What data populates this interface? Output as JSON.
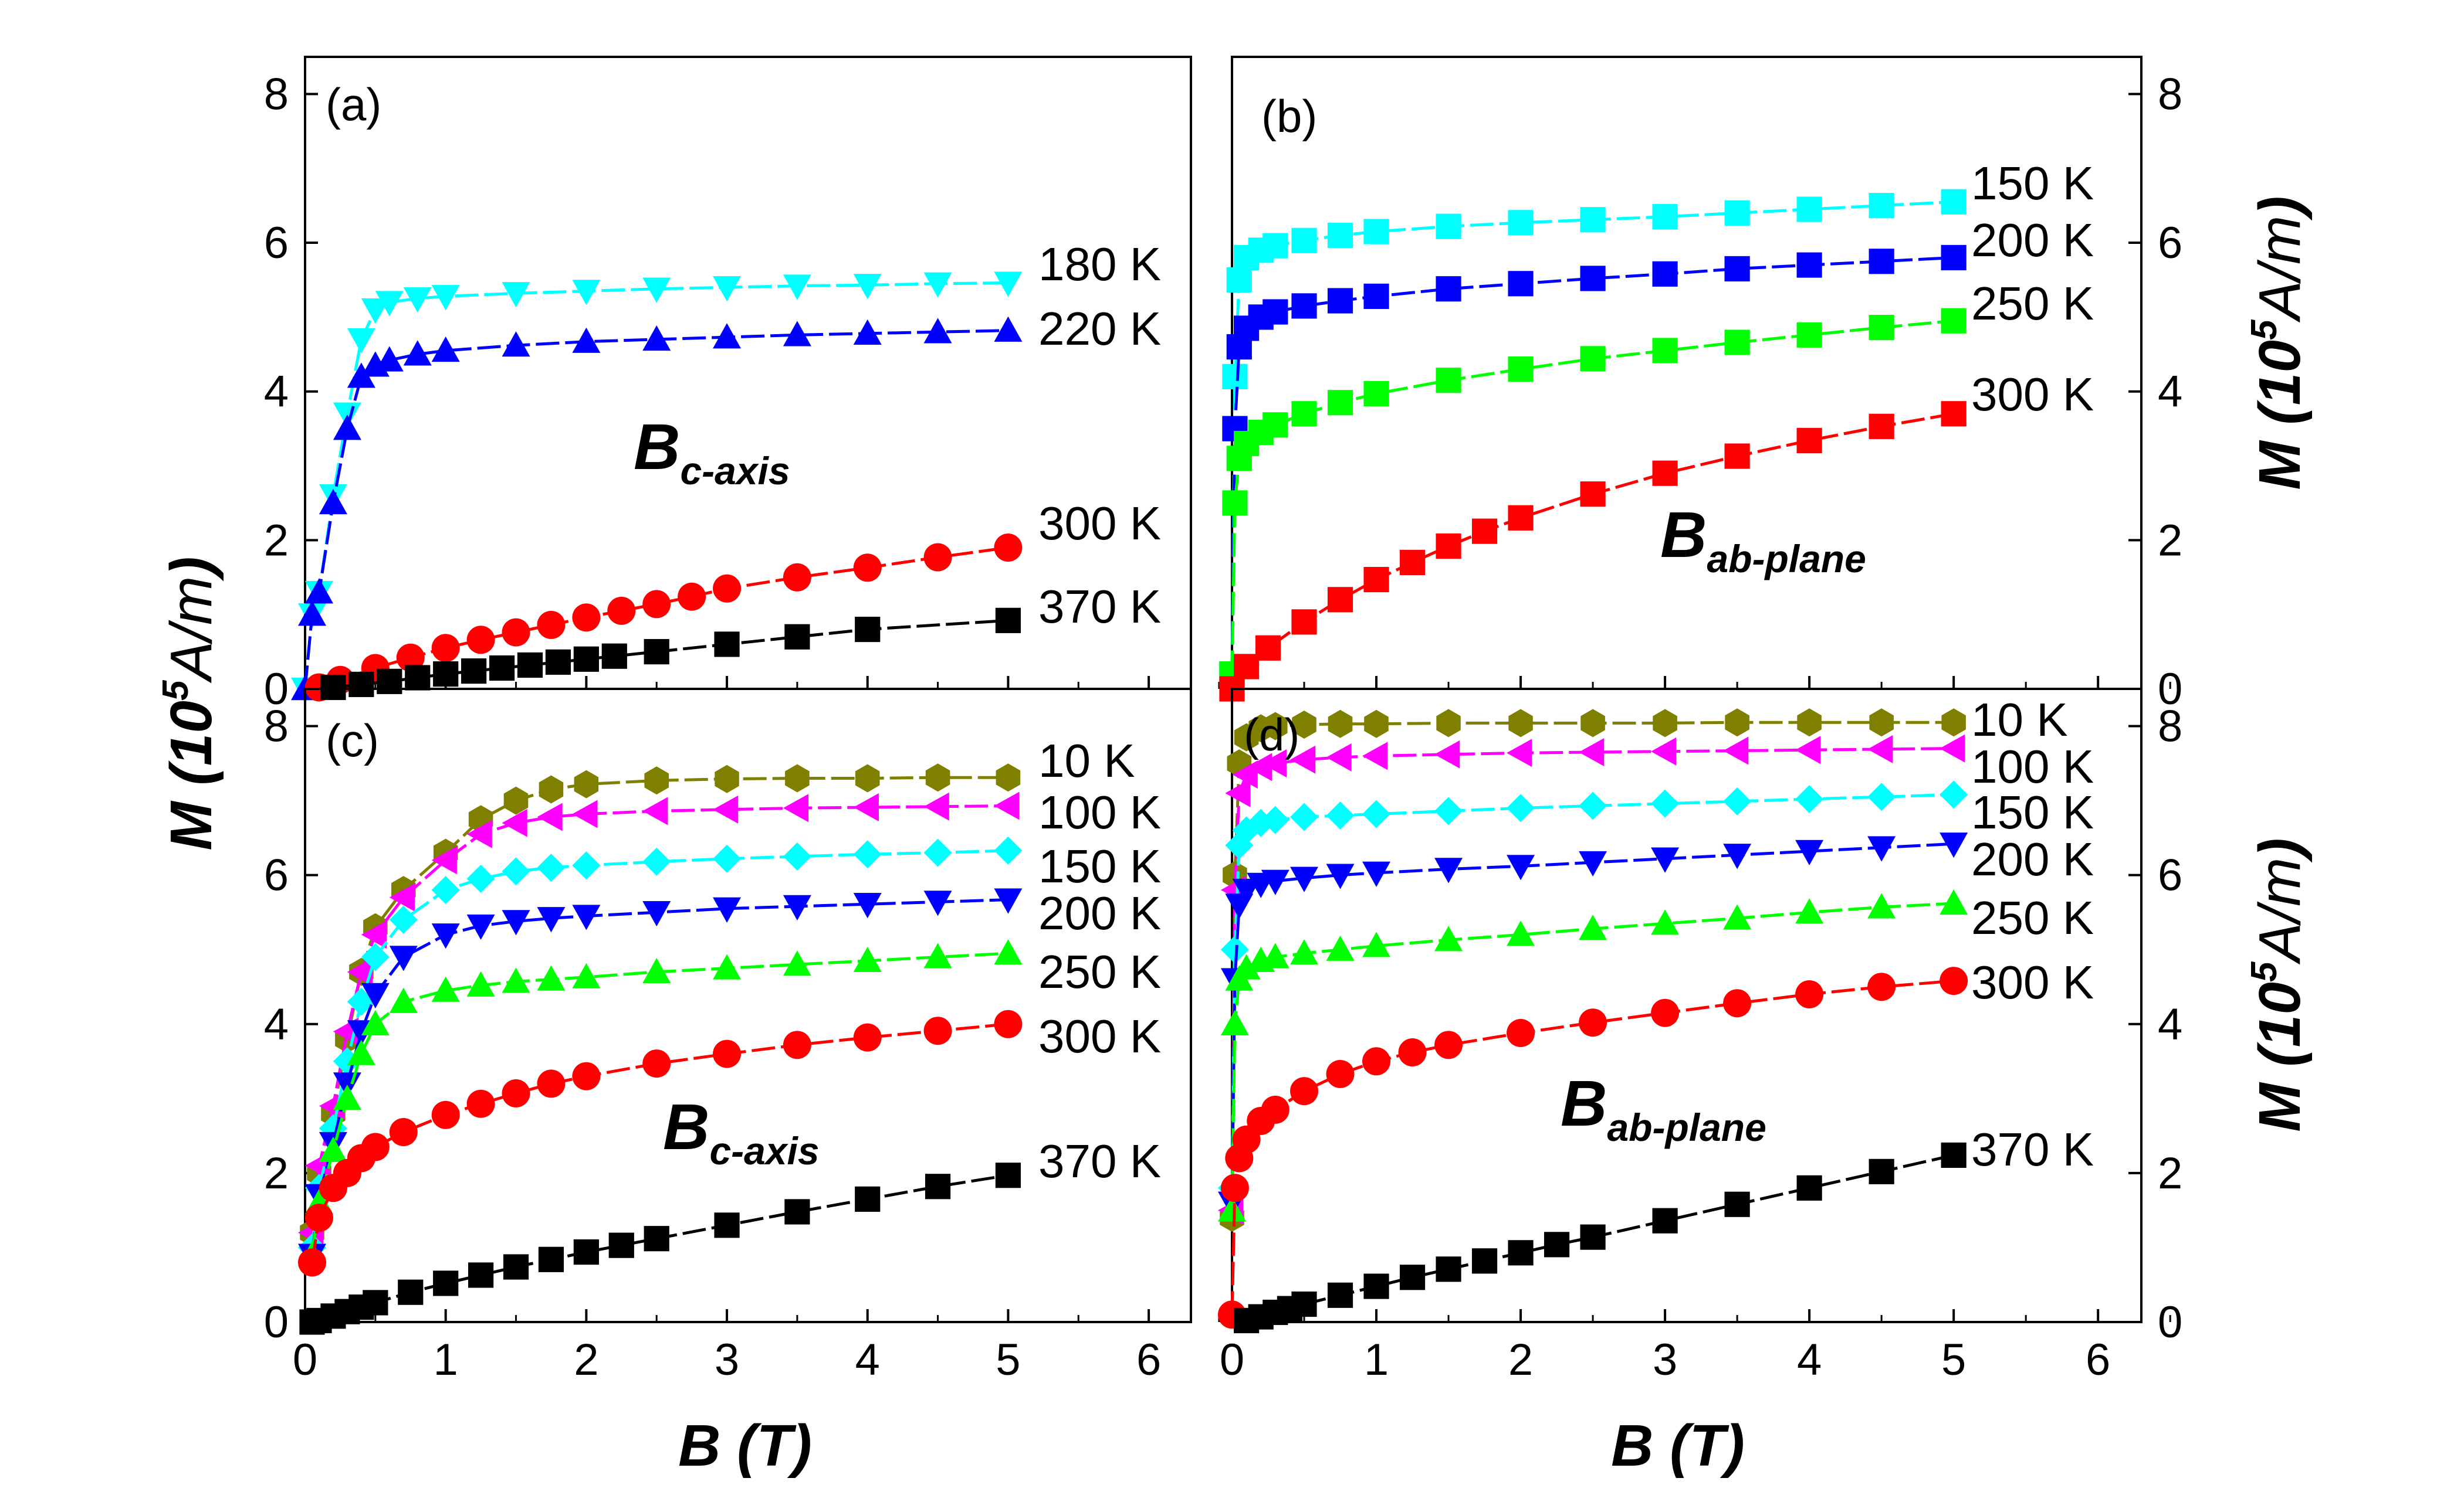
{
  "figure": {
    "y_axis_label_main": "M (10",
    "y_axis_label_sup": "5",
    "y_axis_label_unit": "A/m",
    "y_axis_label_close": ")",
    "x_axis_label": "B (T)"
  },
  "chart_data": [
    {
      "panel": "(a)",
      "type": "line",
      "annotation_main": "B",
      "annotation_sub": "c-axis",
      "xlim": [
        0,
        6.3
      ],
      "ylim": [
        0,
        8.5
      ],
      "xticks": [
        0,
        1,
        2,
        3,
        4,
        5,
        6
      ],
      "yticks": [
        0,
        2,
        4,
        6,
        8
      ],
      "series": [
        {
          "name": "180 K",
          "color": "#00ffff",
          "marker": "triangle-down",
          "x": [
            0,
            0.05,
            0.1,
            0.2,
            0.3,
            0.4,
            0.5,
            0.6,
            0.8,
            1,
            1.5,
            2,
            2.5,
            3,
            3.5,
            4,
            4.5,
            5
          ],
          "y": [
            0,
            1.0,
            1.3,
            2.6,
            3.7,
            4.7,
            5.1,
            5.2,
            5.25,
            5.28,
            5.32,
            5.35,
            5.38,
            5.4,
            5.42,
            5.43,
            5.45,
            5.46
          ]
        },
        {
          "name": "220 K",
          "color": "#0000ff",
          "marker": "triangle-up",
          "x": [
            0,
            0.05,
            0.1,
            0.2,
            0.3,
            0.4,
            0.5,
            0.6,
            0.8,
            1,
            1.5,
            2,
            2.5,
            3,
            3.5,
            4,
            4.5,
            5
          ],
          "y": [
            0,
            1.0,
            1.3,
            2.5,
            3.5,
            4.2,
            4.35,
            4.42,
            4.5,
            4.55,
            4.62,
            4.67,
            4.7,
            4.73,
            4.76,
            4.78,
            4.8,
            4.82
          ]
        },
        {
          "name": "300 K",
          "color": "#ff0000",
          "marker": "circle",
          "x": [
            0.1,
            0.25,
            0.5,
            0.75,
            1,
            1.25,
            1.5,
            1.75,
            2,
            2.25,
            2.5,
            2.75,
            3,
            3.5,
            4,
            4.5,
            5
          ],
          "y": [
            0.02,
            0.12,
            0.28,
            0.42,
            0.55,
            0.66,
            0.76,
            0.86,
            0.96,
            1.05,
            1.14,
            1.24,
            1.35,
            1.5,
            1.63,
            1.77,
            1.9
          ]
        },
        {
          "name": "370 K",
          "color": "#000000",
          "marker": "square",
          "x": [
            0.2,
            0.4,
            0.6,
            0.8,
            1,
            1.2,
            1.4,
            1.6,
            1.8,
            2,
            2.2,
            2.5,
            3,
            3.5,
            4,
            5
          ],
          "y": [
            0.02,
            0.06,
            0.1,
            0.15,
            0.2,
            0.24,
            0.28,
            0.32,
            0.36,
            0.4,
            0.44,
            0.5,
            0.6,
            0.7,
            0.8,
            0.92
          ]
        }
      ]
    },
    {
      "panel": "(b)",
      "type": "line",
      "annotation_main": "B",
      "annotation_sub": "ab-plane",
      "xlim": [
        0,
        6.3
      ],
      "ylim": [
        0,
        8.5
      ],
      "xticks": [
        0,
        1,
        2,
        3,
        4,
        5,
        6
      ],
      "yticks": [
        0,
        2,
        4,
        6,
        8
      ],
      "series": [
        {
          "name": "150 K",
          "color": "#00ffff",
          "marker": "square",
          "x": [
            0,
            0.02,
            0.05,
            0.1,
            0.2,
            0.3,
            0.5,
            0.75,
            1,
            1.5,
            2,
            2.5,
            3,
            3.5,
            4,
            4.5,
            5
          ],
          "y": [
            0.2,
            4.2,
            5.5,
            5.8,
            5.9,
            5.96,
            6.03,
            6.1,
            6.15,
            6.22,
            6.27,
            6.31,
            6.35,
            6.4,
            6.45,
            6.5,
            6.55
          ]
        },
        {
          "name": "200 K",
          "color": "#0000ff",
          "marker": "square",
          "x": [
            0,
            0.02,
            0.05,
            0.1,
            0.2,
            0.3,
            0.5,
            0.75,
            1,
            1.5,
            2,
            2.5,
            3,
            3.5,
            4,
            4.5,
            5
          ],
          "y": [
            0.2,
            3.5,
            4.6,
            4.85,
            5.0,
            5.07,
            5.15,
            5.22,
            5.28,
            5.38,
            5.45,
            5.52,
            5.58,
            5.65,
            5.7,
            5.75,
            5.8
          ]
        },
        {
          "name": "250 K",
          "color": "#00ff00",
          "marker": "square",
          "x": [
            0,
            0.02,
            0.05,
            0.1,
            0.2,
            0.3,
            0.5,
            0.75,
            1,
            1.5,
            2,
            2.5,
            3,
            3.5,
            4,
            4.5,
            5
          ],
          "y": [
            0.2,
            2.5,
            3.1,
            3.3,
            3.45,
            3.55,
            3.7,
            3.85,
            3.97,
            4.15,
            4.3,
            4.44,
            4.55,
            4.66,
            4.76,
            4.86,
            4.95
          ]
        },
        {
          "name": "300 K",
          "color": "#ff0000",
          "marker": "square",
          "x": [
            0,
            0.1,
            0.25,
            0.5,
            0.75,
            1,
            1.25,
            1.5,
            1.75,
            2,
            2.5,
            3,
            3.5,
            4,
            4.5,
            5
          ],
          "y": [
            0,
            0.3,
            0.55,
            0.9,
            1.2,
            1.47,
            1.7,
            1.92,
            2.12,
            2.3,
            2.62,
            2.9,
            3.13,
            3.34,
            3.53,
            3.7
          ]
        }
      ]
    },
    {
      "panel": "(c)",
      "type": "line",
      "annotation_main": "B",
      "annotation_sub": "c-axis",
      "xlim": [
        0,
        6.3
      ],
      "ylim": [
        0,
        8.5
      ],
      "xticks": [
        0,
        1,
        2,
        3,
        4,
        5,
        6
      ],
      "yticks": [
        0,
        2,
        4,
        6,
        8
      ],
      "series": [
        {
          "name": "10 K",
          "color": "#808000",
          "marker": "hexagon",
          "x": [
            0.05,
            0.1,
            0.2,
            0.3,
            0.4,
            0.5,
            0.7,
            1,
            1.25,
            1.5,
            1.75,
            2,
            2.5,
            3,
            3.5,
            4,
            4.5,
            5
          ],
          "y": [
            1.2,
            2.0,
            2.8,
            3.8,
            4.7,
            5.3,
            5.8,
            6.3,
            6.75,
            7.0,
            7.15,
            7.22,
            7.27,
            7.29,
            7.3,
            7.3,
            7.31,
            7.31
          ]
        },
        {
          "name": "100 K",
          "color": "#ff00ff",
          "marker": "triangle-left",
          "x": [
            0.05,
            0.1,
            0.2,
            0.3,
            0.4,
            0.5,
            0.7,
            1,
            1.25,
            1.5,
            1.75,
            2,
            2.5,
            3,
            3.5,
            4,
            4.5,
            5
          ],
          "y": [
            1.2,
            2.1,
            2.9,
            3.9,
            4.7,
            5.2,
            5.7,
            6.2,
            6.55,
            6.7,
            6.78,
            6.82,
            6.86,
            6.88,
            6.9,
            6.91,
            6.92,
            6.93
          ]
        },
        {
          "name": "150 K",
          "color": "#00ffff",
          "marker": "diamond",
          "x": [
            0.05,
            0.1,
            0.2,
            0.3,
            0.4,
            0.5,
            0.7,
            1,
            1.25,
            1.5,
            1.75,
            2,
            2.5,
            3,
            3.5,
            4,
            4.5,
            5
          ],
          "y": [
            1.0,
            1.8,
            2.6,
            3.5,
            4.3,
            4.9,
            5.4,
            5.8,
            5.95,
            6.05,
            6.1,
            6.13,
            6.18,
            6.22,
            6.25,
            6.28,
            6.3,
            6.33
          ]
        },
        {
          "name": "200 K",
          "color": "#0000ff",
          "marker": "triangle-down",
          "x": [
            0.05,
            0.1,
            0.2,
            0.3,
            0.4,
            0.5,
            0.7,
            1,
            1.25,
            1.5,
            1.75,
            2,
            2.5,
            3,
            3.5,
            4,
            4.5,
            5
          ],
          "y": [
            0.9,
            1.7,
            2.4,
            3.2,
            3.9,
            4.4,
            4.9,
            5.2,
            5.32,
            5.38,
            5.42,
            5.45,
            5.5,
            5.55,
            5.58,
            5.61,
            5.64,
            5.67
          ]
        },
        {
          "name": "250 K",
          "color": "#00ff00",
          "marker": "triangle-up",
          "x": [
            0.05,
            0.1,
            0.2,
            0.3,
            0.4,
            0.5,
            0.7,
            1,
            1.25,
            1.5,
            1.75,
            2,
            2.5,
            3,
            3.5,
            4,
            4.5,
            5
          ],
          "y": [
            0.9,
            1.6,
            2.3,
            3.0,
            3.6,
            4.0,
            4.3,
            4.45,
            4.52,
            4.57,
            4.6,
            4.63,
            4.7,
            4.75,
            4.8,
            4.85,
            4.9,
            4.95
          ]
        },
        {
          "name": "300 K",
          "color": "#ff0000",
          "marker": "circle",
          "x": [
            0.05,
            0.1,
            0.2,
            0.3,
            0.4,
            0.5,
            0.7,
            1,
            1.25,
            1.5,
            1.75,
            2,
            2.5,
            3,
            3.5,
            4,
            4.5,
            5
          ],
          "y": [
            0.8,
            1.4,
            1.8,
            2.0,
            2.2,
            2.35,
            2.55,
            2.78,
            2.93,
            3.07,
            3.2,
            3.3,
            3.47,
            3.6,
            3.72,
            3.82,
            3.91,
            4.0
          ]
        },
        {
          "name": "370 K",
          "color": "#000000",
          "marker": "square",
          "x": [
            0.05,
            0.1,
            0.2,
            0.3,
            0.4,
            0.5,
            0.75,
            1,
            1.25,
            1.5,
            1.75,
            2,
            2.25,
            2.5,
            3,
            3.5,
            4,
            4.5,
            5
          ],
          "y": [
            0,
            0.02,
            0.08,
            0.14,
            0.2,
            0.26,
            0.4,
            0.52,
            0.63,
            0.74,
            0.84,
            0.94,
            1.03,
            1.12,
            1.3,
            1.48,
            1.65,
            1.82,
            1.97
          ]
        }
      ]
    },
    {
      "panel": "(d)",
      "type": "line",
      "annotation_main": "B",
      "annotation_sub": "ab-plane",
      "xlim": [
        0,
        6.3
      ],
      "ylim": [
        0,
        8.5
      ],
      "xticks": [
        0,
        1,
        2,
        3,
        4,
        5,
        6
      ],
      "yticks": [
        0,
        2,
        4,
        6,
        8
      ],
      "series": [
        {
          "name": "10 K",
          "color": "#808000",
          "marker": "hexagon",
          "x": [
            0,
            0.02,
            0.05,
            0.1,
            0.2,
            0.3,
            0.5,
            0.75,
            1,
            1.5,
            2,
            2.5,
            3,
            3.5,
            4,
            4.5,
            5
          ],
          "y": [
            1.4,
            6.0,
            7.5,
            7.85,
            7.97,
            8.0,
            8.02,
            8.03,
            8.03,
            8.04,
            8.04,
            8.04,
            8.04,
            8.05,
            8.05,
            8.05,
            8.05
          ]
        },
        {
          "name": "100 K",
          "color": "#ff00ff",
          "marker": "triangle-left",
          "x": [
            0,
            0.02,
            0.05,
            0.1,
            0.2,
            0.3,
            0.5,
            0.75,
            1,
            1.5,
            2,
            2.5,
            3,
            3.5,
            4,
            4.5,
            5
          ],
          "y": [
            1.5,
            5.8,
            7.1,
            7.35,
            7.45,
            7.5,
            7.55,
            7.58,
            7.6,
            7.62,
            7.64,
            7.65,
            7.66,
            7.67,
            7.68,
            7.69,
            7.7
          ]
        },
        {
          "name": "150 K",
          "color": "#00ffff",
          "marker": "diamond",
          "x": [
            0,
            0.02,
            0.05,
            0.1,
            0.2,
            0.3,
            0.5,
            0.75,
            1,
            1.5,
            2,
            2.5,
            3,
            3.5,
            4,
            4.5,
            5
          ],
          "y": [
            1.8,
            5.0,
            6.4,
            6.6,
            6.7,
            6.74,
            6.78,
            6.8,
            6.82,
            6.86,
            6.9,
            6.93,
            6.96,
            6.99,
            7.02,
            7.05,
            7.08
          ]
        },
        {
          "name": "200 K",
          "color": "#0000ff",
          "marker": "triangle-down",
          "x": [
            0,
            0.02,
            0.05,
            0.1,
            0.2,
            0.3,
            0.5,
            0.75,
            1,
            1.5,
            2,
            2.5,
            3,
            3.5,
            4,
            4.5,
            5
          ],
          "y": [
            1.6,
            4.6,
            5.6,
            5.8,
            5.88,
            5.92,
            5.96,
            6.0,
            6.03,
            6.08,
            6.12,
            6.17,
            6.22,
            6.27,
            6.32,
            6.37,
            6.42
          ]
        },
        {
          "name": "250 K",
          "color": "#00ff00",
          "marker": "triangle-up",
          "x": [
            0,
            0.02,
            0.05,
            0.1,
            0.2,
            0.3,
            0.5,
            0.75,
            1,
            1.5,
            2,
            2.5,
            3,
            3.5,
            4,
            4.5,
            5
          ],
          "y": [
            1.5,
            4.0,
            4.6,
            4.75,
            4.85,
            4.9,
            4.95,
            5.0,
            5.05,
            5.13,
            5.2,
            5.28,
            5.35,
            5.42,
            5.5,
            5.57,
            5.62
          ]
        },
        {
          "name": "300 K",
          "color": "#ff0000",
          "marker": "circle",
          "x": [
            0,
            0.02,
            0.05,
            0.1,
            0.2,
            0.3,
            0.5,
            0.75,
            1,
            1.25,
            1.5,
            2,
            2.5,
            3,
            3.5,
            4,
            4.5,
            5
          ],
          "y": [
            0.1,
            1.8,
            2.2,
            2.45,
            2.7,
            2.85,
            3.1,
            3.33,
            3.5,
            3.62,
            3.72,
            3.88,
            4.02,
            4.15,
            4.28,
            4.4,
            4.5,
            4.58
          ]
        },
        {
          "name": "370 K",
          "color": "#000000",
          "marker": "square",
          "x": [
            0.1,
            0.2,
            0.3,
            0.4,
            0.5,
            0.75,
            1,
            1.25,
            1.5,
            1.75,
            2,
            2.25,
            2.5,
            3,
            3.5,
            4,
            4.5,
            5
          ],
          "y": [
            0.02,
            0.07,
            0.13,
            0.18,
            0.24,
            0.36,
            0.48,
            0.6,
            0.71,
            0.82,
            0.93,
            1.04,
            1.14,
            1.36,
            1.58,
            1.8,
            2.02,
            2.24
          ]
        }
      ]
    }
  ]
}
